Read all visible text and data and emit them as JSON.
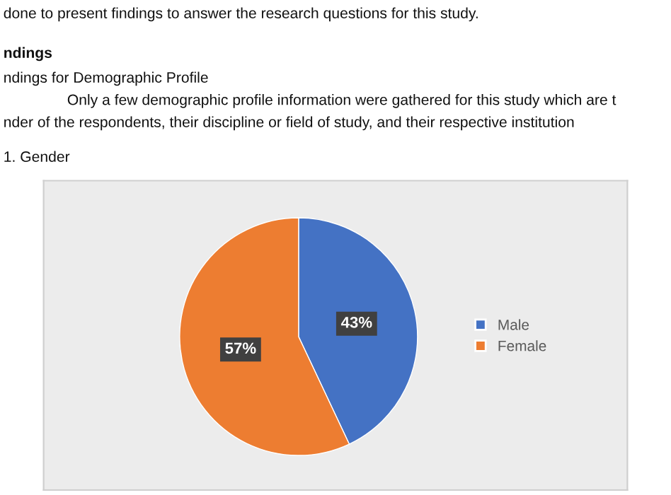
{
  "chart_data": {
    "type": "pie",
    "categories": [
      "Male",
      "Female"
    ],
    "values": [
      43,
      57
    ],
    "colors": [
      "#4472c4",
      "#ed7d31"
    ],
    "value_labels": [
      "43%",
      "57%"
    ],
    "legend": "right",
    "annotations": [
      "done to present findings to answer the research questions for this study.",
      "ndings",
      "ndings for Demographic Profile",
      "Only a few demographic profile information were gathered for this study which are t",
      "nder of the respondents, their discipline or field of study, and their respective institution",
      "1. Gender"
    ]
  }
}
